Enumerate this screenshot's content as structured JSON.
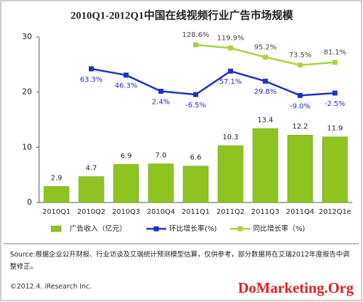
{
  "chart_data": {
    "type": "bar",
    "title": "2010Q1-2012Q1中国在线视频行业广告市场规模",
    "categories": [
      "2010Q1",
      "2010Q2",
      "2010Q3",
      "2010Q4",
      "2011Q1",
      "2011Q2",
      "2011Q3",
      "2011Q4",
      "2012Q1e"
    ],
    "series": [
      {
        "name": "广告收入（亿元）",
        "type": "bar",
        "color": "#8fc31f",
        "values": [
          2.9,
          4.7,
          6.9,
          7.0,
          6.6,
          10.3,
          13.4,
          12.2,
          11.9
        ],
        "value_labels": [
          "2.9",
          "4.7",
          "6.9",
          "7.0",
          "6.6",
          "10.3",
          "13.4",
          "12.2",
          "11.9"
        ]
      },
      {
        "name": "环比增长率(%)",
        "type": "line",
        "axis": "y2",
        "color": "#1f2fc8",
        "values": [
          null,
          63.3,
          46.3,
          2.4,
          -6.5,
          57.1,
          29.8,
          -9.0,
          -2.5
        ],
        "value_labels": [
          null,
          "63.3%",
          "46.3%",
          "2.4%",
          "-6.5%",
          "57.1%",
          "29.8%",
          "-9.0%",
          "-2.5%"
        ]
      },
      {
        "name": "同比增长率（%)",
        "type": "line",
        "axis": "y2",
        "color": "#a9d142",
        "values": [
          null,
          null,
          null,
          null,
          128.6,
          119.9,
          95.2,
          73.5,
          81.1
        ],
        "value_labels": [
          null,
          null,
          null,
          null,
          "128.6%",
          "119.9%",
          "95.2%",
          "73.5%",
          "81.1%"
        ]
      }
    ],
    "ylim": [
      0,
      30
    ],
    "yticks": [
      0,
      10,
      20,
      30
    ],
    "y2lim": [
      -300,
      150
    ],
    "grid": false
  },
  "source": "Source:根据企业公开财报、行业访谈及艾瑞统计预测模型估算，仅供参考，部分数据将在艾瑞2012年度报告中调整修正。",
  "copyright": "©2012.4. iResearch Inc.",
  "watermark": "DoMarketing.Org"
}
